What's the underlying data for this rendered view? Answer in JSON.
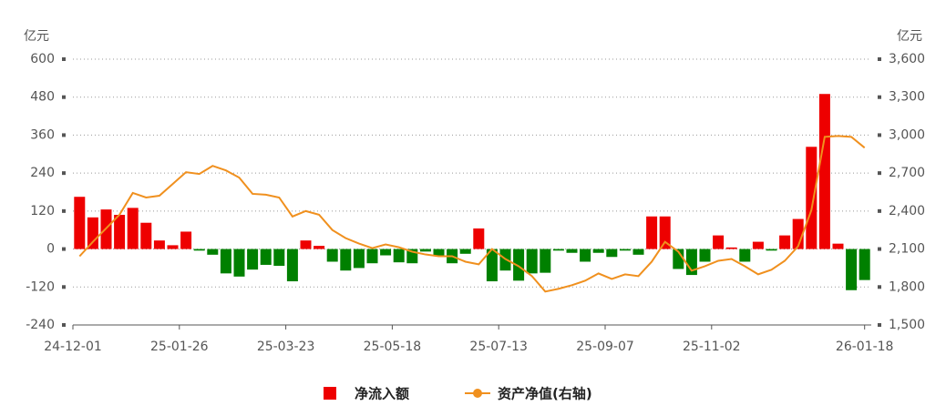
{
  "chart_data": {
    "type": "bar",
    "y_unit_label": "亿元",
    "y2_unit_label": "亿元",
    "categories": [
      "24-12-01",
      null,
      null,
      null,
      null,
      null,
      null,
      null,
      "25-01-26",
      null,
      null,
      null,
      null,
      null,
      null,
      null,
      "25-03-23",
      null,
      null,
      null,
      null,
      null,
      null,
      null,
      "25-05-18",
      null,
      null,
      null,
      null,
      null,
      null,
      null,
      "25-07-13",
      null,
      null,
      null,
      null,
      null,
      null,
      null,
      "25-09-07",
      null,
      null,
      null,
      null,
      null,
      null,
      null,
      "25-11-02",
      null,
      null,
      null,
      null,
      null,
      null,
      null,
      null,
      null,
      null,
      "26-01-18"
    ],
    "series": [
      {
        "name": "净流入额",
        "type": "bar",
        "color": "#ee0000",
        "negative_color": "#008000",
        "values": [
          165,
          100,
          125,
          108,
          130,
          83,
          27,
          12,
          55,
          -5,
          -18,
          -77,
          -87,
          -65,
          -50,
          -53,
          -102,
          27,
          10,
          -40,
          -68,
          -60,
          -45,
          -20,
          -42,
          -45,
          -8,
          -20,
          -45,
          -15,
          65,
          -102,
          -68,
          -100,
          -77,
          -75,
          -5,
          -12,
          -40,
          -12,
          -25,
          -5,
          -18,
          103,
          103,
          -63,
          -82,
          -40,
          43,
          5,
          -40,
          23,
          -5,
          43,
          95,
          323,
          490,
          17,
          -130,
          -98
        ]
      },
      {
        "name": "资产净值(右轴)",
        "type": "line",
        "axis": "y2",
        "color": "#f0901e",
        "values": [
          2043,
          2157,
          2264,
          2371,
          2543,
          2507,
          2521,
          2614,
          2707,
          2693,
          2757,
          2721,
          2664,
          2536,
          2529,
          2507,
          2357,
          2400,
          2371,
          2250,
          2186,
          2143,
          2107,
          2136,
          2114,
          2079,
          2057,
          2043,
          2043,
          2000,
          1979,
          2100,
          2021,
          1964,
          1886,
          1764,
          1786,
          1814,
          1850,
          1907,
          1864,
          1900,
          1886,
          2000,
          2157,
          2079,
          1929,
          1964,
          2007,
          2021,
          1964,
          1900,
          1936,
          2007,
          2121,
          2407,
          2986,
          2993,
          2986,
          2900
        ]
      }
    ],
    "ylim": [
      -240,
      600
    ],
    "yticks": [
      -240,
      -120,
      0,
      120,
      240,
      360,
      480,
      600
    ],
    "y2lim": [
      1500,
      3600
    ],
    "y2ticks": [
      {
        "value": 1500,
        "label": "1,500"
      },
      {
        "value": 1800,
        "label": "1,800"
      },
      {
        "value": 2100,
        "label": "2,100"
      },
      {
        "value": 2400,
        "label": "2,400"
      },
      {
        "value": 2700,
        "label": "2,700"
      },
      {
        "value": 3000,
        "label": "3,000"
      },
      {
        "value": 3300,
        "label": "3,300"
      },
      {
        "value": 3600,
        "label": "3,600"
      }
    ],
    "grid": true
  }
}
